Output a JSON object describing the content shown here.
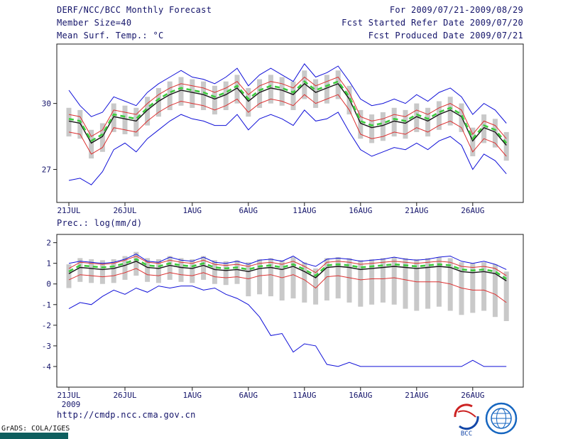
{
  "header": {
    "title": "DERF/NCC/BCC Monthly Forecast",
    "member_size": "Member Size=40",
    "temp_label": "Mean Surf. Temp.: °C",
    "for_range": "For 2009/07/21-2009/08/29",
    "refer_date": "Fcst Started Refer Date 2009/07/20",
    "produced_date": "Fcst Produced Date 2009/07/21"
  },
  "footer": {
    "url": "http://cmdp.ncc.cma.gov.cn",
    "grads_credit": "GrADS: COLA/IGES",
    "bcc_label": "BCC",
    "logos": [
      "bcc-logo",
      "cma-ncc-logo"
    ]
  },
  "colors": {
    "text": "#14146a",
    "axis": "#1a1a1a",
    "envelope_blue": "#1010d8",
    "quartile_red": "#dc3232",
    "median_black": "#141414",
    "ensemble_mean_green": "#3ecb3e",
    "spread_gray": "#c9c9c9",
    "taskbar_teal": "#0e5e5e"
  },
  "chart_data": [
    {
      "type": "line",
      "title": "Mean Surf. Temp.: °C",
      "subtitle": "ensemble plume: daily min/max (blue), quartiles (red), median (black), ensemble mean (green dashed), spread bars (gray)",
      "x_start_date": "2009-07-21",
      "x_end_date": "2009-08-29",
      "n_days": 40,
      "xtick_labels": [
        "21JUL",
        "26JUL",
        "1AUG",
        "6AUG",
        "11AUG",
        "16AUG",
        "21AUG",
        "26AUG"
      ],
      "xtick_indices": [
        0,
        5,
        11,
        16,
        21,
        26,
        31,
        36
      ],
      "x_year_label": "2009",
      "xlabel": "",
      "ylabel": "°C",
      "ylim": [
        25.5,
        32.7
      ],
      "yticks": [
        27,
        30
      ],
      "grid": false,
      "legend": "none",
      "series": [
        {
          "name": "ensemble-spread-bar",
          "type": "bar",
          "color": "#c9c9c9",
          "high": [
            29.8,
            29.7,
            28.8,
            29.1,
            30.0,
            29.9,
            29.8,
            30.3,
            30.7,
            31.0,
            31.2,
            31.1,
            31.0,
            30.8,
            31.0,
            31.3,
            30.7,
            31.1,
            31.3,
            31.2,
            31.0,
            31.5,
            31.1,
            31.3,
            31.5,
            30.8,
            29.7,
            29.5,
            29.6,
            29.8,
            29.7,
            30.0,
            29.8,
            30.1,
            30.3,
            30.0,
            28.9,
            29.5,
            29.3,
            28.7
          ],
          "low": [
            28.5,
            28.4,
            27.5,
            27.8,
            28.7,
            28.6,
            28.5,
            29.0,
            29.4,
            29.7,
            29.9,
            29.8,
            29.7,
            29.5,
            29.7,
            30.0,
            29.4,
            29.8,
            30.0,
            29.9,
            29.7,
            30.2,
            29.8,
            30.0,
            30.2,
            29.5,
            28.4,
            28.2,
            28.3,
            28.5,
            28.4,
            28.7,
            28.5,
            28.8,
            29.0,
            28.7,
            27.6,
            28.2,
            28.0,
            27.4
          ]
        },
        {
          "name": "max",
          "type": "line",
          "color": "#1010d8",
          "width": 1,
          "values": [
            30.6,
            29.9,
            29.4,
            29.6,
            30.3,
            30.1,
            29.9,
            30.5,
            30.9,
            31.2,
            31.5,
            31.2,
            31.1,
            30.9,
            31.2,
            31.6,
            30.8,
            31.3,
            31.6,
            31.3,
            31.0,
            31.8,
            31.2,
            31.4,
            31.7,
            31.0,
            30.2,
            29.9,
            30.0,
            30.2,
            30.0,
            30.4,
            30.1,
            30.5,
            30.7,
            30.3,
            29.5,
            30.0,
            29.7,
            29.1
          ]
        },
        {
          "name": "min",
          "type": "line",
          "color": "#1010d8",
          "width": 1,
          "values": [
            26.5,
            26.6,
            26.3,
            26.9,
            27.9,
            28.2,
            27.8,
            28.4,
            28.8,
            29.2,
            29.5,
            29.3,
            29.2,
            29.0,
            29.0,
            29.5,
            28.8,
            29.3,
            29.5,
            29.3,
            29.0,
            29.7,
            29.2,
            29.3,
            29.6,
            28.7,
            27.9,
            27.6,
            27.8,
            28.0,
            27.9,
            28.2,
            27.9,
            28.3,
            28.5,
            28.1,
            27.0,
            27.7,
            27.4,
            26.8
          ]
        },
        {
          "name": "upper-quartile",
          "type": "line",
          "color": "#dc3232",
          "width": 1,
          "values": [
            29.5,
            29.4,
            28.5,
            28.8,
            29.7,
            29.6,
            29.5,
            30.0,
            30.4,
            30.7,
            30.9,
            30.8,
            30.7,
            30.5,
            30.7,
            31.0,
            30.4,
            30.8,
            31.0,
            30.9,
            30.7,
            31.2,
            30.8,
            31.0,
            31.2,
            30.5,
            29.4,
            29.2,
            29.3,
            29.5,
            29.4,
            29.7,
            29.5,
            29.8,
            30.0,
            29.7,
            28.6,
            29.2,
            29.0,
            28.4
          ]
        },
        {
          "name": "lower-quartile",
          "type": "line",
          "color": "#dc3232",
          "width": 1,
          "values": [
            28.7,
            28.6,
            27.7,
            28.0,
            28.9,
            28.8,
            28.7,
            29.2,
            29.6,
            29.9,
            30.1,
            30.0,
            29.9,
            29.7,
            29.9,
            30.2,
            29.6,
            30.0,
            30.2,
            30.1,
            29.9,
            30.4,
            30.0,
            30.2,
            30.4,
            29.7,
            28.6,
            28.4,
            28.5,
            28.7,
            28.6,
            28.9,
            28.7,
            29.0,
            29.2,
            28.9,
            27.8,
            28.4,
            28.2,
            27.6
          ]
        },
        {
          "name": "median",
          "type": "line",
          "color": "#141414",
          "width": 1.4,
          "values": [
            29.2,
            29.1,
            28.2,
            28.5,
            29.4,
            29.3,
            29.2,
            29.7,
            30.1,
            30.4,
            30.6,
            30.5,
            30.4,
            30.2,
            30.4,
            30.7,
            30.1,
            30.5,
            30.7,
            30.6,
            30.4,
            30.9,
            30.5,
            30.7,
            30.9,
            30.2,
            29.1,
            28.9,
            29.0,
            29.2,
            29.1,
            29.4,
            29.2,
            29.5,
            29.7,
            29.4,
            28.3,
            28.9,
            28.7,
            28.1
          ]
        },
        {
          "name": "ensemble-mean",
          "type": "line",
          "color": "#3ecb3e",
          "width": 2.6,
          "dash": true,
          "values": [
            29.3,
            29.2,
            28.3,
            28.6,
            29.5,
            29.4,
            29.3,
            29.8,
            30.2,
            30.5,
            30.7,
            30.6,
            30.5,
            30.3,
            30.5,
            30.8,
            30.2,
            30.6,
            30.8,
            30.7,
            30.5,
            31.0,
            30.6,
            30.8,
            31.0,
            30.3,
            29.2,
            29.0,
            29.1,
            29.3,
            29.2,
            29.5,
            29.3,
            29.6,
            29.8,
            29.5,
            28.4,
            29.0,
            28.8,
            28.2
          ]
        }
      ]
    },
    {
      "type": "line",
      "title": "Prec.: log(mm/d)",
      "subtitle": "ensemble plume: daily min/max (blue), quartiles (red), median (black), ensemble mean (green dashed), spread bars (gray)",
      "x_start_date": "2009-07-21",
      "x_end_date": "2009-08-29",
      "n_days": 40,
      "xtick_labels": [
        "21JUL",
        "26JUL",
        "1AUG",
        "6AUG",
        "11AUG",
        "16AUG",
        "21AUG",
        "26AUG"
      ],
      "xtick_indices": [
        0,
        5,
        11,
        16,
        21,
        26,
        31,
        36
      ],
      "x_year_label": "2009",
      "xlabel": "",
      "ylabel": "log(mm/d)",
      "ylim": [
        -5.0,
        2.4
      ],
      "yticks": [
        2,
        1,
        0,
        -1,
        -2,
        -3,
        -4
      ],
      "grid": false,
      "legend": "none",
      "series": [
        {
          "name": "ensemble-spread-bar",
          "type": "bar",
          "color": "#c9c9c9",
          "high": [
            0.95,
            1.25,
            1.2,
            1.15,
            1.2,
            1.35,
            1.55,
            1.25,
            1.2,
            1.35,
            1.25,
            1.2,
            1.35,
            1.15,
            1.1,
            1.15,
            1.05,
            1.2,
            1.25,
            1.15,
            1.3,
            1.05,
            0.75,
            1.25,
            1.3,
            1.25,
            1.15,
            1.2,
            1.25,
            1.3,
            1.25,
            1.2,
            1.25,
            1.3,
            1.25,
            1.05,
            1.0,
            1.05,
            0.95,
            0.6
          ],
          "low": [
            -0.2,
            0.1,
            0.05,
            0.0,
            0.05,
            0.2,
            0.4,
            0.1,
            0.05,
            0.2,
            0.1,
            0.05,
            0.2,
            0.0,
            -0.05,
            0.0,
            -0.6,
            -0.5,
            -0.6,
            -0.8,
            -0.7,
            -0.9,
            -1.0,
            -0.8,
            -0.7,
            -0.9,
            -1.1,
            -1.0,
            -0.9,
            -1.0,
            -1.2,
            -1.3,
            -1.2,
            -1.1,
            -1.3,
            -1.5,
            -1.4,
            -1.3,
            -1.6,
            -1.8
          ]
        },
        {
          "name": "max",
          "type": "line",
          "color": "#1010d8",
          "width": 1,
          "values": [
            1.0,
            1.1,
            1.05,
            1.0,
            1.05,
            1.2,
            1.45,
            1.1,
            1.05,
            1.3,
            1.15,
            1.1,
            1.3,
            1.05,
            1.0,
            1.1,
            0.95,
            1.15,
            1.2,
            1.1,
            1.35,
            1.0,
            0.85,
            1.2,
            1.25,
            1.2,
            1.1,
            1.15,
            1.2,
            1.3,
            1.2,
            1.15,
            1.2,
            1.3,
            1.35,
            1.1,
            1.0,
            1.1,
            0.95,
            0.7
          ]
        },
        {
          "name": "min",
          "type": "line",
          "color": "#1010d8",
          "width": 1,
          "values": [
            -1.2,
            -0.9,
            -1.0,
            -0.6,
            -0.3,
            -0.5,
            -0.2,
            -0.4,
            -0.1,
            -0.2,
            -0.1,
            -0.1,
            -0.3,
            -0.2,
            -0.5,
            -0.7,
            -1.0,
            -1.6,
            -2.5,
            -2.4,
            -3.3,
            -2.9,
            -3.0,
            -3.9,
            -4.0,
            -3.8,
            -4.0,
            -4.0,
            -4.0,
            -4.0,
            -4.0,
            -4.0,
            -4.0,
            -4.0,
            -4.0,
            -4.0,
            -3.7,
            -4.0,
            -4.0,
            -4.0
          ]
        },
        {
          "name": "upper-quartile",
          "type": "line",
          "color": "#dc3232",
          "width": 1,
          "values": [
            0.75,
            1.05,
            1.0,
            0.95,
            1.0,
            1.15,
            1.35,
            1.05,
            1.0,
            1.15,
            1.05,
            1.0,
            1.15,
            0.95,
            0.9,
            0.95,
            0.85,
            1.0,
            1.05,
            0.95,
            1.1,
            0.85,
            0.55,
            1.05,
            1.1,
            1.05,
            0.95,
            1.0,
            1.05,
            1.1,
            1.05,
            1.0,
            1.05,
            1.1,
            1.05,
            0.85,
            0.8,
            0.85,
            0.75,
            0.4
          ]
        },
        {
          "name": "lower-quartile",
          "type": "line",
          "color": "#dc3232",
          "width": 1,
          "values": [
            0.2,
            0.45,
            0.4,
            0.35,
            0.4,
            0.55,
            0.75,
            0.45,
            0.4,
            0.55,
            0.45,
            0.4,
            0.55,
            0.35,
            0.3,
            0.35,
            0.25,
            0.4,
            0.45,
            0.3,
            0.45,
            0.2,
            -0.2,
            0.35,
            0.4,
            0.3,
            0.2,
            0.25,
            0.25,
            0.3,
            0.2,
            0.1,
            0.1,
            0.1,
            0.0,
            -0.2,
            -0.3,
            -0.3,
            -0.5,
            -0.9
          ]
        },
        {
          "name": "median",
          "type": "line",
          "color": "#141414",
          "width": 1.4,
          "values": [
            0.5,
            0.8,
            0.75,
            0.7,
            0.75,
            0.9,
            1.1,
            0.8,
            0.75,
            0.9,
            0.8,
            0.75,
            0.9,
            0.7,
            0.65,
            0.7,
            0.6,
            0.75,
            0.8,
            0.7,
            0.85,
            0.6,
            0.3,
            0.8,
            0.85,
            0.8,
            0.7,
            0.75,
            0.8,
            0.85,
            0.8,
            0.75,
            0.8,
            0.85,
            0.8,
            0.6,
            0.55,
            0.6,
            0.5,
            0.15
          ]
        },
        {
          "name": "ensemble-mean",
          "type": "line",
          "color": "#3ecb3e",
          "width": 2.6,
          "dash": true,
          "values": [
            0.6,
            0.9,
            0.85,
            0.8,
            0.85,
            1.0,
            1.2,
            0.9,
            0.85,
            1.0,
            0.9,
            0.85,
            1.0,
            0.8,
            0.75,
            0.8,
            0.7,
            0.85,
            0.9,
            0.8,
            0.95,
            0.7,
            0.4,
            0.9,
            0.95,
            0.9,
            0.8,
            0.85,
            0.9,
            0.95,
            0.9,
            0.85,
            0.9,
            0.95,
            0.9,
            0.7,
            0.65,
            0.7,
            0.6,
            0.25
          ]
        }
      ]
    }
  ]
}
